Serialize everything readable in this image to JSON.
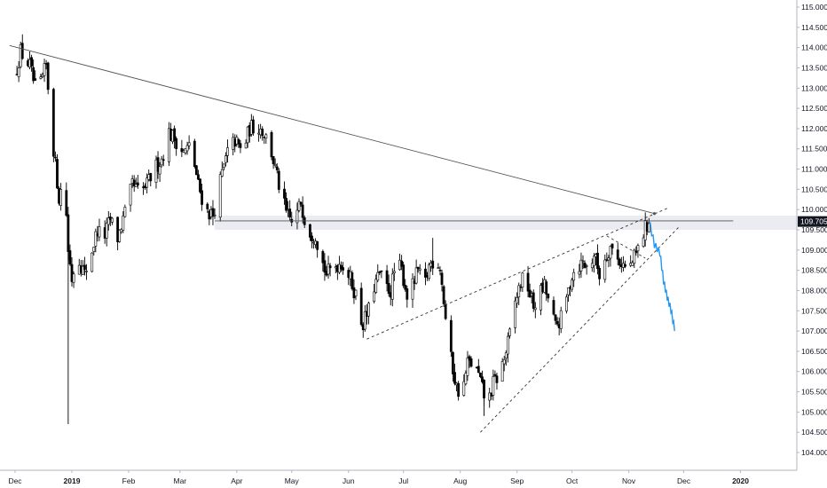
{
  "chart_data": {
    "type": "candlestick",
    "title": "",
    "xlabel": "",
    "ylabel": "",
    "ylim": [
      103.5,
      115.25
    ],
    "y_ticks": [
      "104.000",
      "104.500",
      "105.000",
      "105.500",
      "106.000",
      "106.500",
      "107.000",
      "107.500",
      "108.000",
      "108.500",
      "109.000",
      "109.500",
      "110.000",
      "110.500",
      "111.000",
      "111.500",
      "112.000",
      "112.500",
      "113.000",
      "113.500",
      "114.000",
      "114.500",
      "115.000"
    ],
    "x_ticks": [
      "Dec",
      "2019",
      "Feb",
      "Mar",
      "Apr",
      "May",
      "Jun",
      "Jul",
      "Aug",
      "Sep",
      "Oct",
      "Nov",
      "Dec",
      "2020"
    ],
    "x_tick_days": [
      0,
      31,
      62,
      90,
      121,
      151,
      182,
      212,
      243,
      274,
      304,
      335,
      365,
      396
    ],
    "bold_ticks": [
      "2019",
      "2020"
    ],
    "last_price": "109.705",
    "last_price_value": 109.705,
    "grid": false,
    "legend": "none",
    "colors": {
      "up": "#ffffff",
      "down": "#000000",
      "wick": "#000000",
      "projection": "#2196f3",
      "trendline": "#555555",
      "level_band": "#d9dde6"
    },
    "anchors": [
      [
        0,
        113.3
      ],
      [
        3,
        113.9
      ],
      [
        8,
        113.55
      ],
      [
        12,
        112.8
      ],
      [
        17,
        113.55
      ],
      [
        21,
        111.5
      ],
      [
        24,
        110.3
      ],
      [
        27,
        110.8
      ],
      [
        29,
        109.0
      ],
      [
        31,
        108.3
      ],
      [
        34,
        108.9
      ],
      [
        38,
        108.4
      ],
      [
        42,
        109.0
      ],
      [
        45,
        109.5
      ],
      [
        48,
        109.25
      ],
      [
        52,
        109.75
      ],
      [
        56,
        109.3
      ],
      [
        60,
        109.9
      ],
      [
        64,
        110.6
      ],
      [
        68,
        110.4
      ],
      [
        72,
        110.6
      ],
      [
        76,
        111.0
      ],
      [
        80,
        111.25
      ],
      [
        84,
        111.9
      ],
      [
        88,
        111.7
      ],
      [
        92,
        111.4
      ],
      [
        96,
        111.6
      ],
      [
        100,
        110.6
      ],
      [
        104,
        110.0
      ],
      [
        108,
        109.85
      ],
      [
        112,
        110.7
      ],
      [
        116,
        111.4
      ],
      [
        120,
        111.7
      ],
      [
        124,
        111.4
      ],
      [
        128,
        112.0
      ],
      [
        132,
        112.1
      ],
      [
        136,
        111.9
      ],
      [
        140,
        111.4
      ],
      [
        144,
        110.6
      ],
      [
        148,
        109.9
      ],
      [
        152,
        109.6
      ],
      [
        156,
        110.2
      ],
      [
        159,
        109.6
      ],
      [
        162,
        109.4
      ],
      [
        164,
        109.4
      ],
      [
        167,
        108.8
      ],
      [
        170,
        108.4
      ],
      [
        174,
        108.6
      ],
      [
        178,
        108.7
      ],
      [
        182,
        108.4
      ],
      [
        186,
        107.9
      ],
      [
        188,
        107.3
      ],
      [
        190,
        107.2
      ],
      [
        193,
        107.5
      ],
      [
        196,
        108.1
      ],
      [
        199,
        108.4
      ],
      [
        202,
        108.1
      ],
      [
        205,
        108.0
      ],
      [
        208,
        108.7
      ],
      [
        211,
        108.5
      ],
      [
        214,
        107.9
      ],
      [
        217,
        108.1
      ],
      [
        220,
        108.5
      ],
      [
        223,
        108.0
      ],
      [
        226,
        108.6
      ],
      [
        229,
        108.8
      ],
      [
        232,
        108.6
      ],
      [
        235,
        107.3
      ],
      [
        238,
        106.3
      ],
      [
        241,
        105.6
      ],
      [
        244,
        105.4
      ],
      [
        247,
        106.2
      ],
      [
        250,
        106.2
      ],
      [
        253,
        105.9
      ],
      [
        256,
        105.4
      ],
      [
        258,
        105.2
      ],
      [
        261,
        105.7
      ],
      [
        264,
        105.9
      ],
      [
        267,
        106.3
      ],
      [
        270,
        106.9
      ],
      [
        273,
        107.7
      ],
      [
        276,
        108.2
      ],
      [
        279,
        108.3
      ],
      [
        281,
        107.9
      ],
      [
        283,
        107.6
      ],
      [
        286,
        107.9
      ],
      [
        289,
        108.1
      ],
      [
        292,
        107.6
      ],
      [
        295,
        107.1
      ],
      [
        298,
        107.3
      ],
      [
        301,
        107.8
      ],
      [
        304,
        108.4
      ],
      [
        307,
        108.6
      ],
      [
        310,
        108.7
      ],
      [
        313,
        108.5
      ],
      [
        316,
        108.9
      ],
      [
        319,
        108.4
      ],
      [
        322,
        108.8
      ],
      [
        325,
        109.1
      ],
      [
        328,
        108.8
      ],
      [
        331,
        108.7
      ],
      [
        334,
        108.5
      ],
      [
        336,
        108.6
      ],
      [
        339,
        108.9
      ],
      [
        342,
        109.25
      ],
      [
        344,
        109.55
      ],
      [
        346,
        109.7
      ]
    ],
    "projection": [
      [
        346,
        109.7
      ],
      [
        349,
        109.1
      ],
      [
        352,
        108.9
      ],
      [
        354,
        108.2
      ],
      [
        356,
        107.8
      ],
      [
        358,
        107.5
      ],
      [
        360,
        107.0
      ]
    ],
    "trendlines": [
      {
        "style": "solid",
        "points": [
          [
            -3,
            114.05
          ],
          [
            349,
            109.9
          ]
        ]
      },
      {
        "style": "solid",
        "points": [
          [
            109,
            109.72
          ],
          [
            392,
            109.72
          ]
        ]
      },
      {
        "style": "dashed",
        "points": [
          [
            192,
            106.8
          ],
          [
            357,
            110.05
          ]
        ]
      },
      {
        "style": "dashed",
        "points": [
          [
            254,
            104.5
          ],
          [
            363,
            109.6
          ]
        ]
      },
      {
        "style": "dashed",
        "points": [
          [
            323,
            109.35
          ],
          [
            344,
            108.8
          ]
        ]
      }
    ],
    "level_band": [
      109.5,
      109.85
    ],
    "spike_low": {
      "day": 29,
      "value": 104.7
    },
    "spike_high": {
      "day": 228,
      "value": 109.3
    },
    "spike_low2": {
      "day": 256,
      "value": 104.9
    }
  }
}
